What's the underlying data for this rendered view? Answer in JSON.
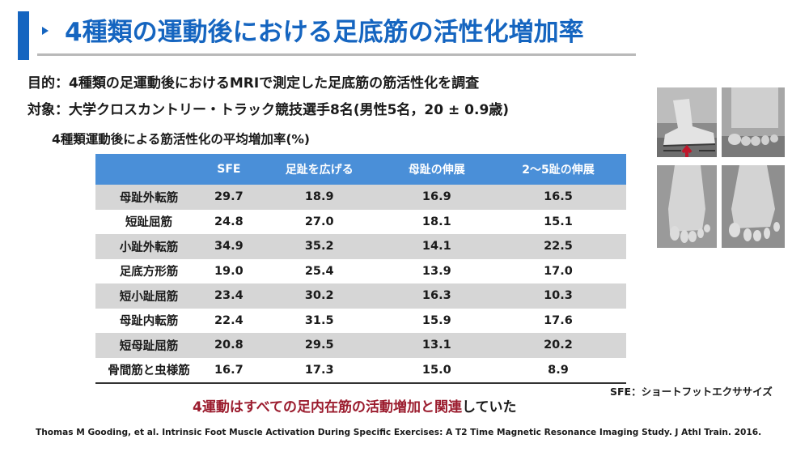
{
  "header": {
    "title": "4種類の運動後における足底筋の活性化増加率",
    "accent_color": "#1565c0"
  },
  "purpose": "目的：4種類の足運動後におけるMRIで測定した足底筋の筋活性化を調査",
  "subjects": "対象：大学クロスカントリー・トラック競技選手8名(男性5名，20 ± 0.9歳)",
  "table": {
    "caption": "4種類運動後による筋活性化の平均増加率(%)",
    "columns": [
      "",
      "SFE",
      "足趾を広げる",
      "母趾の伸展",
      "2～5趾の伸展"
    ],
    "rows": [
      {
        "muscle": "母趾外転筋",
        "values": [
          "29.7",
          "18.9",
          "16.9",
          "16.5"
        ]
      },
      {
        "muscle": "短趾屈筋",
        "values": [
          "24.8",
          "27.0",
          "18.1",
          "15.1"
        ]
      },
      {
        "muscle": "小趾外転筋",
        "values": [
          "34.9",
          "35.2",
          "14.1",
          "22.5"
        ]
      },
      {
        "muscle": "足底方形筋",
        "values": [
          "19.0",
          "25.4",
          "13.9",
          "17.0"
        ]
      },
      {
        "muscle": "短小趾屈筋",
        "values": [
          "23.4",
          "30.2",
          "16.3",
          "10.3"
        ]
      },
      {
        "muscle": "母趾内転筋",
        "values": [
          "22.4",
          "31.5",
          "15.9",
          "17.6"
        ]
      },
      {
        "muscle": "短母趾屈筋",
        "values": [
          "20.8",
          "29.5",
          "13.1",
          "20.2"
        ]
      },
      {
        "muscle": "骨間筋と虫様筋",
        "values": [
          "16.7",
          "17.3",
          "15.0",
          "8.9"
        ]
      }
    ],
    "header_color": "#4a8fd8"
  },
  "note": "SFE：ショートフットエクササイズ",
  "conclusion": {
    "highlight": "4運動はすべての足内在筋の活動増加と関連",
    "rest": "していた",
    "highlight_color": "#9b1c2e"
  },
  "citation": "Thomas M Gooding, et al. Intrinsic Foot Muscle Activation During Specific Exercises: A T2 Time Magnetic Resonance Imaging Study. J Athl Train. 2016."
}
